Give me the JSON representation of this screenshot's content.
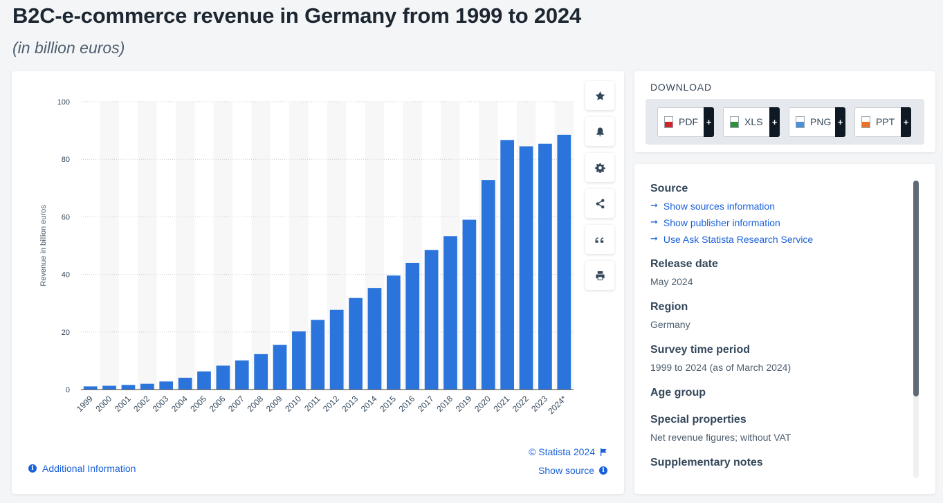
{
  "page": {
    "title": "B2C-e-commerce revenue in Germany from 1999 to 2024",
    "subtitle": "(in billion euros)"
  },
  "colors": {
    "bar": "#2a74dc",
    "link": "#1a61d9",
    "band": "#f7f7f7"
  },
  "toolbar": {
    "buttons": [
      "star-icon",
      "bell-icon",
      "gear-icon",
      "share-icon",
      "quote-icon",
      "print-icon"
    ]
  },
  "footer": {
    "additional_info": "Additional Information",
    "copyright": "© Statista 2024",
    "show_source": "Show source"
  },
  "download": {
    "title": "DOWNLOAD",
    "formats": [
      {
        "label": "PDF",
        "color": "#d2232a"
      },
      {
        "label": "XLS",
        "color": "#2f8f3a"
      },
      {
        "label": "PNG",
        "color": "#4a90d9"
      },
      {
        "label": "PPT",
        "color": "#e8722a"
      }
    ],
    "plus": "+"
  },
  "info": {
    "source_title": "Source",
    "source_links": [
      "Show sources information",
      "Show publisher information",
      "Use Ask Statista Research Service"
    ],
    "release_title": "Release date",
    "release_value": "May 2024",
    "region_title": "Region",
    "region_value": "Germany",
    "survey_title": "Survey time period",
    "survey_value": "1999 to 2024 (as of March 2024)",
    "age_title": "Age group",
    "special_title": "Special properties",
    "special_value": "Net revenue figures; without VAT",
    "supp_title": "Supplementary notes"
  },
  "chart_data": {
    "type": "bar",
    "categories": [
      "1999",
      "2000",
      "2001",
      "2002",
      "2003",
      "2004",
      "2005",
      "2006",
      "2007",
      "2008",
      "2009",
      "2010",
      "2011",
      "2012",
      "2013",
      "2014",
      "2015",
      "2016",
      "2017",
      "2018",
      "2019",
      "2020",
      "2021",
      "2022",
      "2023",
      "2024*"
    ],
    "values": [
      1.1,
      1.3,
      1.6,
      2.0,
      2.8,
      4.1,
      6.3,
      8.3,
      10.1,
      12.3,
      15.5,
      20.2,
      24.2,
      27.7,
      31.8,
      35.3,
      39.6,
      44.0,
      48.5,
      53.3,
      59.0,
      72.8,
      86.7,
      84.5,
      85.4,
      88.5
    ],
    "ylabel": "Revenue in billion euros",
    "xlabel": "",
    "ylim": [
      0,
      100
    ],
    "yticks": [
      0,
      20,
      40,
      60,
      80,
      100
    ],
    "grid": true
  }
}
